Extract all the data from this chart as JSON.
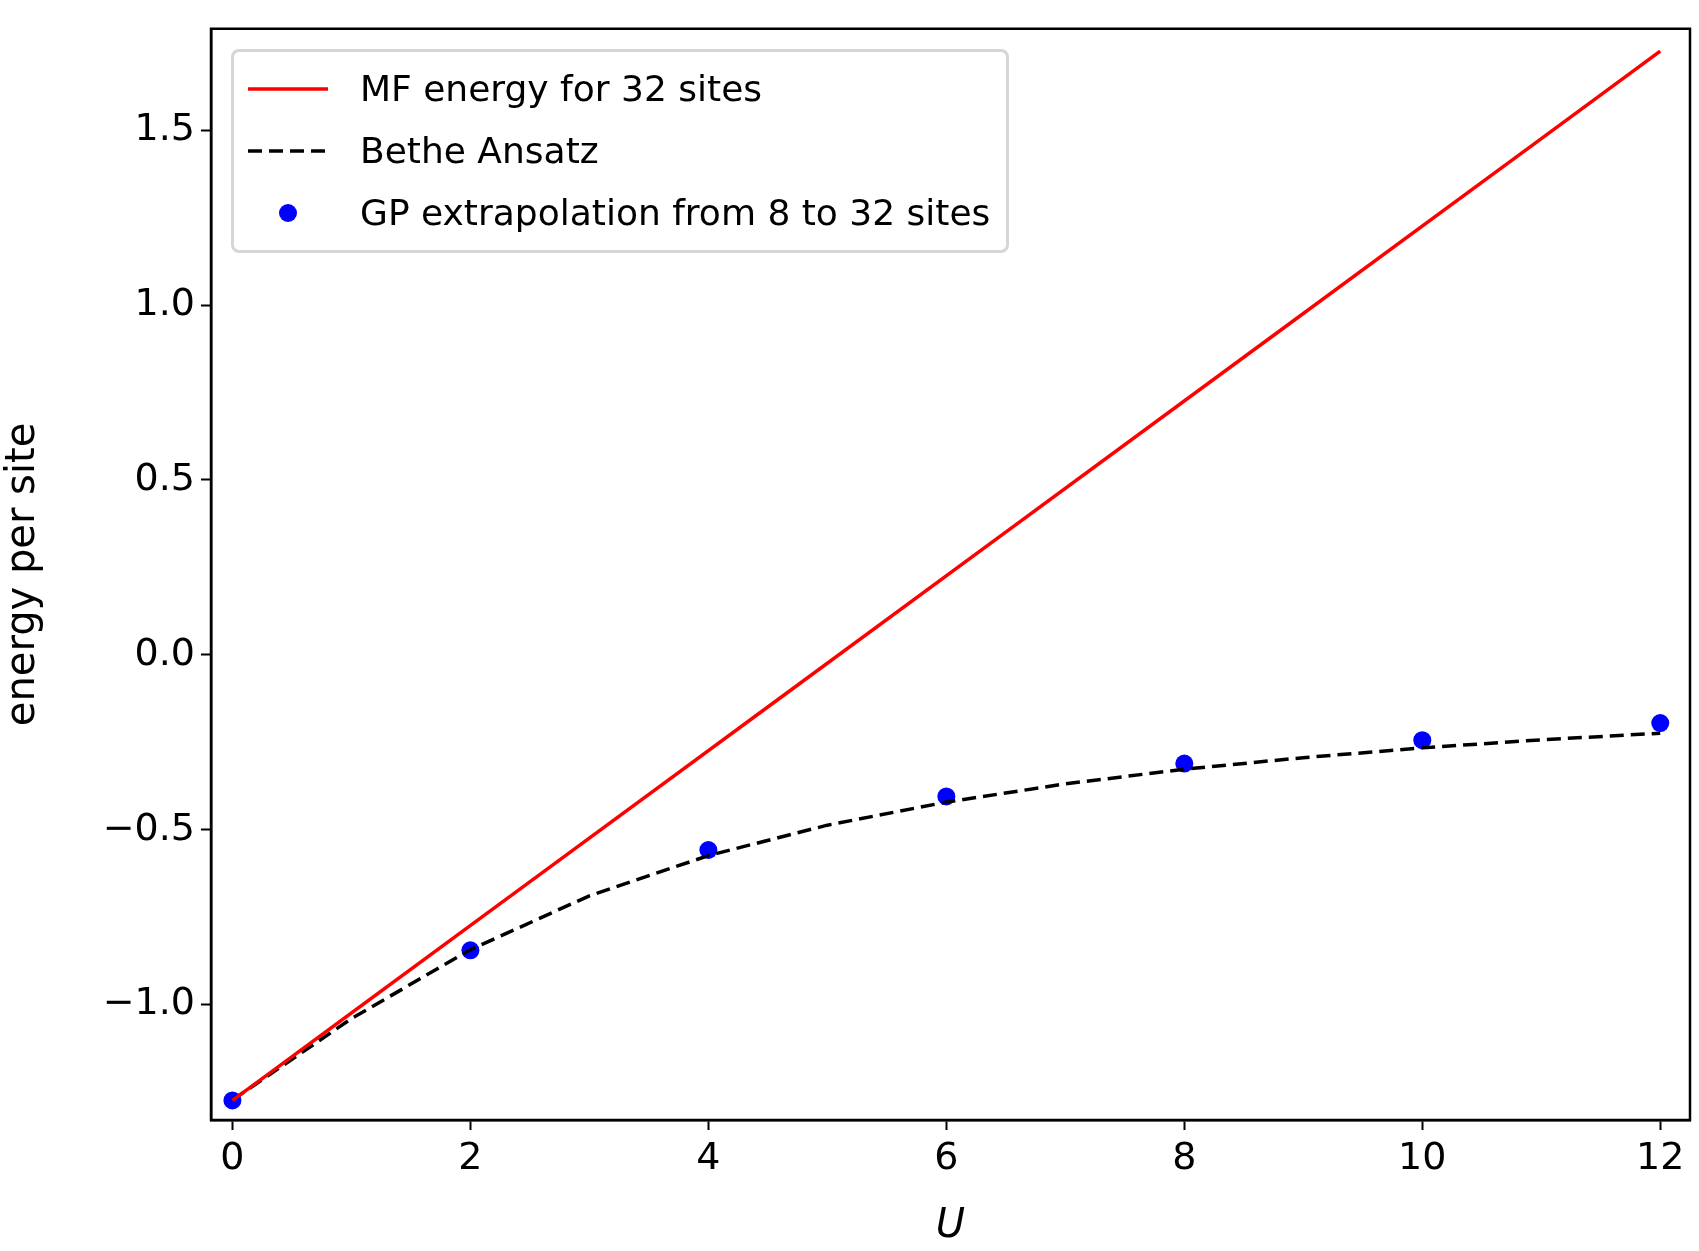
{
  "chart_data": {
    "type": "line",
    "xlabel": "U",
    "ylabel": "energy per site",
    "xlim": [
      -0.18,
      12.25
    ],
    "ylim": [
      -1.33,
      1.79
    ],
    "xticks": [
      0,
      2,
      4,
      6,
      8,
      10,
      12
    ],
    "yticks": [
      {
        "value": -1.0,
        "label": "−1.0"
      },
      {
        "value": -0.5,
        "label": "−0.5"
      },
      {
        "value": 0,
        "label": "0.0"
      },
      {
        "value": 0.5,
        "label": "0.5"
      },
      {
        "value": 1.0,
        "label": "1.0"
      },
      {
        "value": 1.5,
        "label": "1.5"
      }
    ],
    "grid": false,
    "legend": "top left",
    "series": [
      {
        "name": "MF energy for 32 sites",
        "color": "#ff0000",
        "line_style": "solid",
        "marker": "none",
        "x": [
          0,
          12
        ],
        "values": [
          -1.274,
          1.726
        ]
      },
      {
        "name": "Bethe Ansatz",
        "color": "#000000",
        "line_style": "dashed",
        "marker": "none",
        "x": [
          0,
          1,
          2,
          3,
          4,
          5,
          6,
          7,
          8,
          9,
          10,
          11,
          12
        ],
        "values": [
          -1.273,
          -1.04,
          -0.843,
          -0.689,
          -0.574,
          -0.487,
          -0.421,
          -0.369,
          -0.327,
          -0.294,
          -0.266,
          -0.243,
          -0.224
        ]
      },
      {
        "name": "GP extrapolation from 8 to 32 sites",
        "type": "scatter",
        "color": "#0000ff",
        "marker": "circle",
        "x": [
          0,
          2,
          4,
          6,
          8,
          10,
          12
        ],
        "values": [
          -1.274,
          -0.845,
          -0.558,
          -0.405,
          -0.311,
          -0.244,
          -0.195
        ]
      }
    ]
  }
}
